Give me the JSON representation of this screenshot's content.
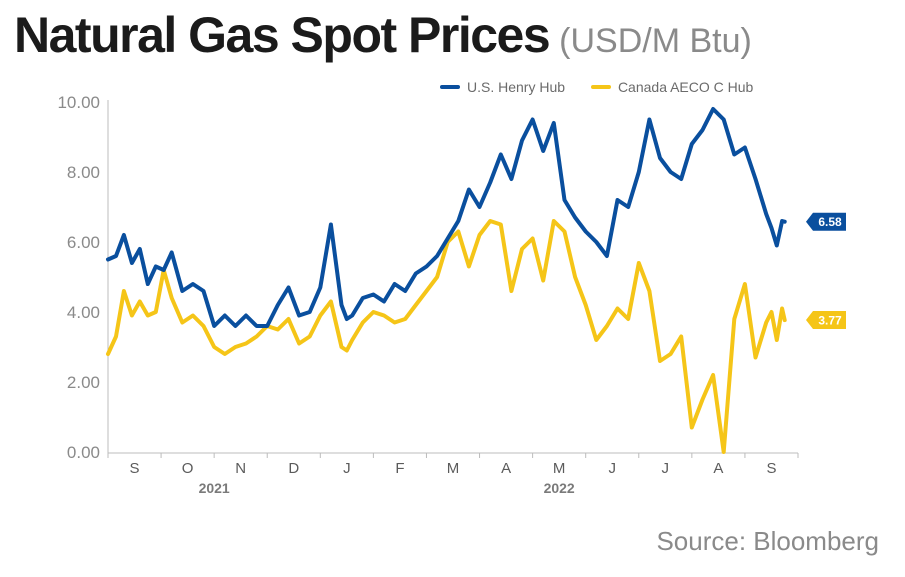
{
  "title": "Natural Gas Spot Prices",
  "units": "(USD/M Btu)",
  "source": "Source: Bloomberg",
  "colors": {
    "henry": "#0a4f9e",
    "aeco": "#f5c518"
  },
  "chart_data": {
    "type": "line",
    "title": "Natural Gas Spot Prices (USD/M Btu)",
    "xlabel": "",
    "ylabel": "",
    "ylim": [
      0,
      10
    ],
    "yticks": [
      "0.00",
      "2.00",
      "4.00",
      "6.00",
      "8.00",
      "10.00"
    ],
    "x_range": [
      0,
      13
    ],
    "month_ticks": [
      {
        "label": "S",
        "x": 0.5
      },
      {
        "label": "O",
        "x": 1.5
      },
      {
        "label": "N",
        "x": 2.5
      },
      {
        "label": "D",
        "x": 3.5
      },
      {
        "label": "J",
        "x": 4.5
      },
      {
        "label": "F",
        "x": 5.5
      },
      {
        "label": "M",
        "x": 6.5
      },
      {
        "label": "A",
        "x": 7.5
      },
      {
        "label": "M",
        "x": 8.5
      },
      {
        "label": "J",
        "x": 9.5
      },
      {
        "label": "J",
        "x": 10.5
      },
      {
        "label": "A",
        "x": 11.5
      },
      {
        "label": "S",
        "x": 12.5
      }
    ],
    "year_labels": [
      {
        "label": "2021",
        "x": 2.0
      },
      {
        "label": "2022",
        "x": 8.5
      }
    ],
    "series": [
      {
        "name": "U.S. Henry Hub",
        "color": "#0a4f9e",
        "end_label": "6.58",
        "x": [
          0,
          0.15,
          0.3,
          0.45,
          0.6,
          0.75,
          0.9,
          1.05,
          1.2,
          1.4,
          1.6,
          1.8,
          2.0,
          2.2,
          2.4,
          2.6,
          2.8,
          3.0,
          3.2,
          3.4,
          3.6,
          3.8,
          4.0,
          4.2,
          4.4,
          4.5,
          4.6,
          4.8,
          5.0,
          5.2,
          5.4,
          5.6,
          5.8,
          6.0,
          6.2,
          6.4,
          6.6,
          6.8,
          7.0,
          7.2,
          7.4,
          7.6,
          7.8,
          8.0,
          8.2,
          8.4,
          8.6,
          8.8,
          9.0,
          9.2,
          9.4,
          9.6,
          9.8,
          10.0,
          10.2,
          10.4,
          10.6,
          10.8,
          11.0,
          11.2,
          11.4,
          11.6,
          11.8,
          12.0,
          12.2,
          12.4,
          12.5,
          12.6,
          12.7,
          12.75
        ],
        "values": [
          5.5,
          5.6,
          6.2,
          5.4,
          5.8,
          4.8,
          5.3,
          5.2,
          5.7,
          4.6,
          4.8,
          4.6,
          3.6,
          3.9,
          3.6,
          3.9,
          3.6,
          3.6,
          4.2,
          4.7,
          3.9,
          4.0,
          4.7,
          6.5,
          4.2,
          3.8,
          3.9,
          4.4,
          4.5,
          4.3,
          4.8,
          4.6,
          5.1,
          5.3,
          5.6,
          6.1,
          6.6,
          7.5,
          7.0,
          7.7,
          8.5,
          7.8,
          8.9,
          9.5,
          8.6,
          9.4,
          7.2,
          6.7,
          6.3,
          6.0,
          5.6,
          7.2,
          7.0,
          8.0,
          9.5,
          8.4,
          8.0,
          7.8,
          8.8,
          9.2,
          9.8,
          9.5,
          8.5,
          8.7,
          7.8,
          6.8,
          6.4,
          5.9,
          6.6,
          6.58
        ]
      },
      {
        "name": "Canada AECO C Hub",
        "color": "#f5c518",
        "end_label": "3.77",
        "x": [
          0,
          0.15,
          0.3,
          0.45,
          0.6,
          0.75,
          0.9,
          1.05,
          1.2,
          1.4,
          1.6,
          1.8,
          2.0,
          2.2,
          2.4,
          2.6,
          2.8,
          3.0,
          3.2,
          3.4,
          3.6,
          3.8,
          4.0,
          4.2,
          4.4,
          4.5,
          4.6,
          4.8,
          5.0,
          5.2,
          5.4,
          5.6,
          5.8,
          6.0,
          6.2,
          6.4,
          6.6,
          6.8,
          7.0,
          7.2,
          7.4,
          7.6,
          7.8,
          8.0,
          8.2,
          8.4,
          8.6,
          8.8,
          9.0,
          9.2,
          9.4,
          9.6,
          9.8,
          10.0,
          10.2,
          10.4,
          10.6,
          10.8,
          11.0,
          11.2,
          11.4,
          11.6,
          11.8,
          12.0,
          12.2,
          12.4,
          12.5,
          12.6,
          12.7,
          12.75
        ],
        "values": [
          2.8,
          3.3,
          4.6,
          3.9,
          4.3,
          3.9,
          4.0,
          5.2,
          4.4,
          3.7,
          3.9,
          3.6,
          3.0,
          2.8,
          3.0,
          3.1,
          3.3,
          3.6,
          3.5,
          3.8,
          3.1,
          3.3,
          3.9,
          4.3,
          3.0,
          2.9,
          3.2,
          3.7,
          4.0,
          3.9,
          3.7,
          3.8,
          4.2,
          4.6,
          5.0,
          6.0,
          6.3,
          5.3,
          6.2,
          6.6,
          6.5,
          4.6,
          5.8,
          6.1,
          4.9,
          6.6,
          6.3,
          5.0,
          4.2,
          3.2,
          3.6,
          4.1,
          3.8,
          5.4,
          4.6,
          2.6,
          2.8,
          3.3,
          0.7,
          1.5,
          2.2,
          0.0,
          3.8,
          4.8,
          2.7,
          3.7,
          4.0,
          3.2,
          4.1,
          3.77
        ]
      }
    ]
  }
}
